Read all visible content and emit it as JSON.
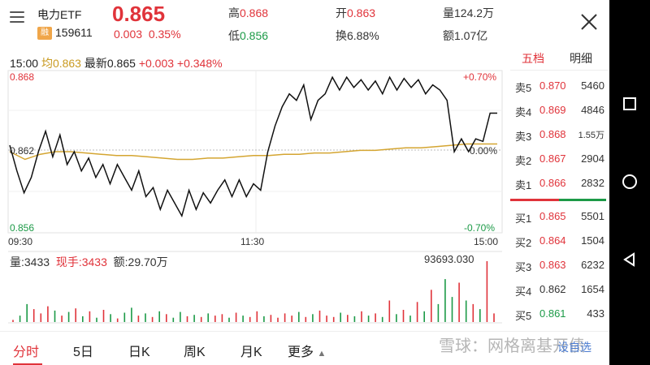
{
  "header": {
    "name": "电力ETF",
    "rong_badge": "融",
    "code": "159611",
    "price": "0.865",
    "change": "0.003",
    "change_pct": "0.35%",
    "high_label": "高",
    "high": "0.868",
    "low_label": "低",
    "low": "0.856",
    "open_label": "开",
    "open": "0.863",
    "turnover_label": "换",
    "turnover": "6.88%",
    "volume_label": "量",
    "volume": "124.2万",
    "amount_label": "额",
    "amount": "1.07亿"
  },
  "chart": {
    "time": "15:00",
    "avg_label": "均",
    "avg_value": "0.863",
    "latest_label": "最新",
    "latest_value": "0.865",
    "latest_change": "+0.003",
    "latest_pct": "+0.348%",
    "y_top": "0.868",
    "y_mid": "0.862",
    "y_bottom": "0.856",
    "pct_top": "+0.70%",
    "pct_mid": "0.00%",
    "pct_bottom": "-0.70%",
    "x_start": "09:30",
    "x_mid": "11:30",
    "x_end": "15:00",
    "vol_label": "量:",
    "vol_value": "3433",
    "hand_label": "现手:",
    "hand_value": "3433",
    "amount_label": "额:",
    "amount_value": "29.70万",
    "vol_max": "93693.030"
  },
  "chart_data": {
    "type": "line",
    "title": "",
    "xlabel": "",
    "ylabel": "",
    "x_ticks": [
      "09:30",
      "11:30",
      "15:00"
    ],
    "ylim": [
      0.856,
      0.868
    ],
    "series": [
      {
        "name": "",
        "values": [
          0.8625,
          0.8605,
          0.8588,
          0.86,
          0.862,
          0.8636,
          0.8616,
          0.8633,
          0.861,
          0.862,
          0.8605,
          0.8615,
          0.86,
          0.861,
          0.8595,
          0.861,
          0.86,
          0.859,
          0.8605,
          0.8585,
          0.8592,
          0.8575,
          0.859,
          0.858,
          0.857,
          0.859,
          0.8575,
          0.8588,
          0.858,
          0.859,
          0.8598,
          0.8585,
          0.8598,
          0.8585,
          0.8595,
          0.859,
          0.862,
          0.864,
          0.8655,
          0.8665,
          0.866,
          0.8672,
          0.8645,
          0.866,
          0.8665,
          0.8678,
          0.8668,
          0.8678,
          0.867,
          0.8676,
          0.8668,
          0.8675,
          0.8665,
          0.8678,
          0.8668,
          0.8677,
          0.867,
          0.8676,
          0.8665,
          0.8672,
          0.8668,
          0.866,
          0.862,
          0.863,
          0.862,
          0.863,
          0.8628,
          0.865,
          0.865
        ]
      },
      {
        "name": "",
        "values": [
          0.862,
          0.8614,
          0.8618,
          0.862,
          0.862,
          0.8619,
          0.8618,
          0.8617,
          0.8617,
          0.8616,
          0.8615,
          0.8614,
          0.8614,
          0.8615,
          0.8615,
          0.8616,
          0.8617,
          0.8617,
          0.8618,
          0.8618,
          0.8619,
          0.8619,
          0.862,
          0.8621,
          0.8621,
          0.8622,
          0.8623,
          0.8623,
          0.8624,
          0.8625,
          0.8626,
          0.8626,
          0.8626
        ]
      }
    ],
    "volume": [
      300,
      900,
      2500,
      1800,
      1200,
      2200,
      1600,
      900,
      1400,
      1900,
      800,
      1500,
      600,
      1700,
      1100,
      500,
      1300,
      2000,
      900,
      1200,
      700,
      1500,
      1100,
      600,
      1400,
      800,
      1000,
      700,
      1200,
      900,
      1100,
      600,
      1300,
      900,
      700,
      1500,
      800,
      1000,
      600,
      1200,
      900,
      1400,
      700,
      1100,
      1600,
      900,
      700,
      1300,
      1000,
      800,
      1500,
      900,
      1200,
      700,
      3000,
      1100,
      1700,
      900,
      2800,
      1500,
      4500,
      2500,
      6000,
      3500,
      5500,
      3000,
      2500,
      1800,
      8500,
      1200
    ]
  },
  "orderbook": {
    "tab_active": "五档",
    "tab_other": "明细",
    "asks": [
      {
        "label": "卖5",
        "price": "0.870",
        "vol": "5460"
      },
      {
        "label": "卖4",
        "price": "0.869",
        "vol": "4846"
      },
      {
        "label": "卖3",
        "price": "0.868",
        "vol": "1.55万"
      },
      {
        "label": "卖2",
        "price": "0.867",
        "vol": "2904"
      },
      {
        "label": "卖1",
        "price": "0.866",
        "vol": "2832"
      }
    ],
    "bids": [
      {
        "label": "买1",
        "price": "0.865",
        "vol": "5501"
      },
      {
        "label": "买2",
        "price": "0.864",
        "vol": "1504"
      },
      {
        "label": "买3",
        "price": "0.863",
        "vol": "6232"
      },
      {
        "label": "买4",
        "price": "0.862",
        "vol": "1654"
      },
      {
        "label": "买5",
        "price": "0.861",
        "vol": "433"
      }
    ]
  },
  "tabs": [
    "分时",
    "5日",
    "日K",
    "周K",
    "月K",
    "更多"
  ],
  "tabs_more_arrow": "▲",
  "custom_button": "设自选",
  "watermark": "雪球：网格离基开债",
  "colors": {
    "up": "#e0333a",
    "down": "#1c9a47",
    "avg_line": "#d4a531",
    "price_line": "#111111"
  }
}
